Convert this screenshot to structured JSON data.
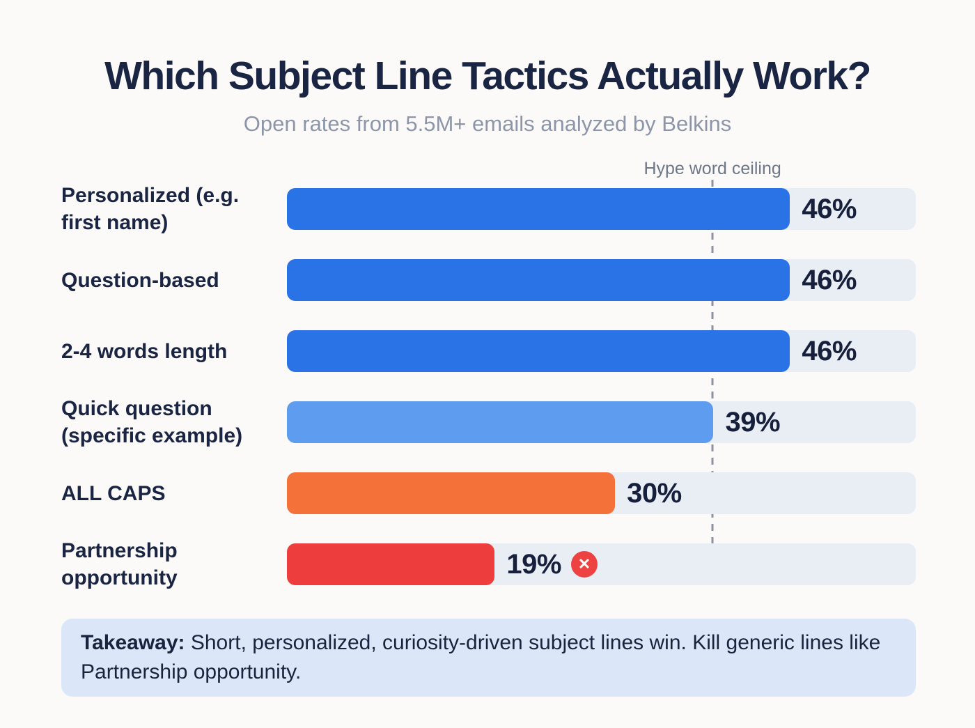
{
  "header": {
    "title": "Which Subject Line Tactics Actually Work?",
    "subtitle": "Open rates from 5.5M+ emails analyzed by Belkins"
  },
  "chart_data": {
    "type": "bar",
    "orientation": "horizontal",
    "title": "Which Subject Line Tactics Actually Work?",
    "subtitle": "Open rates from 5.5M+ emails analyzed by Belkins",
    "categories": [
      "Personalized (e.g. first name)",
      "Question-based",
      "2-4 words length",
      "Quick question (specific example)",
      "ALL CAPS",
      "Partnership opportunity"
    ],
    "values": [
      46,
      46,
      46,
      39,
      30,
      19
    ],
    "value_labels": [
      "46%",
      "46%",
      "46%",
      "39%",
      "30%",
      "19%"
    ],
    "unit": "%",
    "axis_max": 57.5,
    "bar_colors": [
      "#2a73e6",
      "#2a73e6",
      "#2a73e6",
      "#5d9cee",
      "#f4713a",
      "#ed3d3d"
    ],
    "annotation": {
      "label": "Hype word ceiling",
      "value": 39
    },
    "grid": false,
    "legend": false
  },
  "icons": {
    "rejected_glyph": "✕"
  },
  "takeaway": {
    "label": "Takeaway:",
    "text": " Short, personalized, curiosity-driven subject lines win. Kill generic lines like Partnership opportunity."
  },
  "colors": {
    "background": "#fbfaf8",
    "track": "#e9edf4",
    "bar_blue": "#2a73e6",
    "bar_light_blue": "#5d9cee",
    "bar_orange": "#f4713a",
    "bar_red": "#ed3d3d",
    "badge_red": "#ee4141",
    "text_navy": "#1a2443",
    "text_gray": "#8c96a8",
    "ceiling_gray": "#6e7787",
    "takeaway_bg": "#dbe7f8"
  }
}
